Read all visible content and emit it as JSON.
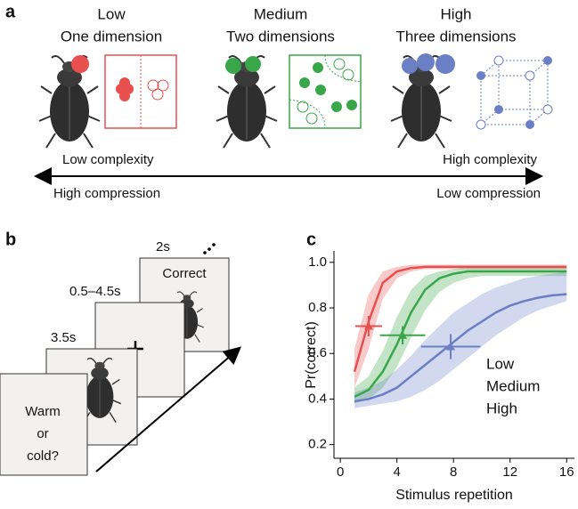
{
  "panel_a": {
    "label": "a",
    "levels": [
      {
        "level": "Low",
        "dimensions": "One dimension",
        "color": "#e8504f"
      },
      {
        "level": "Medium",
        "dimensions": "Two dimensions",
        "color": "#3aa64a"
      },
      {
        "level": "High",
        "dimensions": "Three dimensions",
        "color": "#6b7fc4"
      }
    ],
    "left_top": "Low complexity",
    "right_top": "High complexity",
    "left_bottom": "High compression",
    "right_bottom": "Low compression"
  },
  "panel_b": {
    "label": "b",
    "t4": "2s",
    "feedback": "Correct",
    "t3": "0.5–4.5s",
    "t2": "3.5s",
    "question": [
      "Warm",
      "or",
      "cold?"
    ]
  },
  "panel_c": {
    "label": "c"
  },
  "chart_data": {
    "type": "line",
    "ylabel": "Pr(correct)",
    "xlabel": "Stimulus repetition",
    "xlim": [
      -0.45,
      16.55
    ],
    "ylim": [
      0.14,
      1.05
    ],
    "xticks": [
      0,
      4,
      8,
      12,
      16
    ],
    "yticks": [
      0.2,
      0.4,
      0.6,
      0.8,
      {
        "value": 1,
        "label": "1.0"
      }
    ],
    "x": [
      1,
      2,
      3,
      4,
      5,
      6,
      7,
      8,
      9,
      10,
      11,
      12,
      13,
      14,
      15,
      16
    ],
    "series": [
      {
        "name": "Low",
        "color": "#e8504f",
        "values": [
          0.52,
          0.74,
          0.91,
          0.96,
          0.975,
          0.98,
          0.98,
          0.98,
          0.98,
          0.98,
          0.98,
          0.98,
          0.98,
          0.98,
          0.98,
          0.98
        ],
        "lower": [
          0.45,
          0.62,
          0.84,
          0.93,
          0.96,
          0.97,
          0.97,
          0.97,
          0.97,
          0.97,
          0.97,
          0.97,
          0.97,
          0.97,
          0.97,
          0.97
        ],
        "upper": [
          0.62,
          0.86,
          0.96,
          0.98,
          0.99,
          0.99,
          0.99,
          0.99,
          0.99,
          0.99,
          0.99,
          0.99,
          0.99,
          0.99,
          0.99,
          0.99
        ],
        "point_x": 2,
        "x_error": 0.95,
        "point_y": 0.72,
        "y_error": 0.045
      },
      {
        "name": "Medium",
        "color": "#3aa64a",
        "values": [
          0.41,
          0.44,
          0.52,
          0.64,
          0.78,
          0.88,
          0.93,
          0.95,
          0.96,
          0.96,
          0.96,
          0.96,
          0.96,
          0.96,
          0.96,
          0.96
        ],
        "lower": [
          0.38,
          0.4,
          0.45,
          0.54,
          0.67,
          0.79,
          0.87,
          0.91,
          0.93,
          0.94,
          0.94,
          0.94,
          0.94,
          0.94,
          0.94,
          0.94
        ],
        "upper": [
          0.45,
          0.5,
          0.61,
          0.76,
          0.88,
          0.94,
          0.96,
          0.97,
          0.98,
          0.98,
          0.98,
          0.98,
          0.98,
          0.98,
          0.98,
          0.98
        ],
        "point_x": 4.4,
        "x_error": 1.6,
        "point_y": 0.68,
        "y_error": 0.04
      },
      {
        "name": "High",
        "color": "#6b7fc4",
        "values": [
          0.39,
          0.4,
          0.42,
          0.45,
          0.5,
          0.55,
          0.6,
          0.65,
          0.7,
          0.74,
          0.78,
          0.81,
          0.83,
          0.845,
          0.855,
          0.86
        ],
        "lower": [
          0.36,
          0.37,
          0.38,
          0.39,
          0.41,
          0.44,
          0.48,
          0.53,
          0.58,
          0.63,
          0.68,
          0.72,
          0.76,
          0.79,
          0.81,
          0.83
        ],
        "upper": [
          0.43,
          0.45,
          0.48,
          0.53,
          0.59,
          0.66,
          0.72,
          0.78,
          0.82,
          0.86,
          0.89,
          0.91,
          0.93,
          0.94,
          0.95,
          0.96
        ],
        "point_x": 7.8,
        "x_error": 2.1,
        "point_y": 0.63,
        "y_error": 0.055
      }
    ]
  }
}
